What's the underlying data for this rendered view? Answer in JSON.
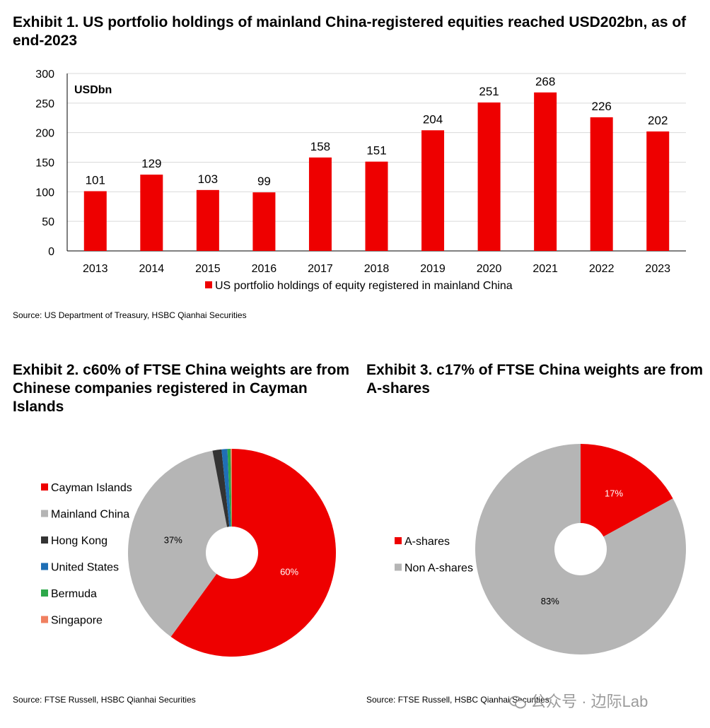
{
  "exhibit1": {
    "title": "Exhibit 1. US portfolio holdings of mainland China-registered equities reached USD202bn, as of end-2023",
    "source": "Source: US Department of Treasury, HSBC Qianhai Securities"
  },
  "exhibit2": {
    "title": "Exhibit 2. c60% of FTSE China weights are from Chinese companies registered in Cayman Islands",
    "source": "Source: FTSE Russell, HSBC Qianhai Securities"
  },
  "exhibit3": {
    "title": "Exhibit 3. c17% of FTSE China weights are from A-shares",
    "source": "Source: FTSE Russell, HSBC Qianhai Securities"
  },
  "watermark": {
    "text": "公众号 · 边际Lab"
  },
  "chart_data": [
    {
      "type": "bar",
      "title": "Exhibit 1. US portfolio holdings of mainland China-registered equities reached USD202bn, as of end-2023",
      "unit_label": "USDbn",
      "categories": [
        "2013",
        "2014",
        "2015",
        "2016",
        "2017",
        "2018",
        "2019",
        "2020",
        "2021",
        "2022",
        "2023"
      ],
      "series": [
        {
          "name": "US portfolio holdings of equity registered in mainland China",
          "values": [
            101,
            129,
            103,
            99,
            158,
            151,
            204,
            251,
            268,
            226,
            202
          ],
          "color": "#ee0000"
        }
      ],
      "ylim": [
        0,
        300
      ],
      "yticks": [
        0,
        50,
        100,
        150,
        200,
        250,
        300
      ],
      "grid": true,
      "legend": "bottom"
    },
    {
      "type": "pie",
      "title": "Exhibit 2. c60% of FTSE China weights are from Chinese companies registered in Cayman Islands",
      "start_angle_deg": 0,
      "slices": [
        {
          "name": "Cayman Islands",
          "value": 60,
          "color": "#ee0000",
          "label": "60%",
          "label_color": "#ffffff"
        },
        {
          "name": "Mainland China",
          "value": 37,
          "color": "#b5b5b5",
          "label": "37%",
          "label_color": "#000000"
        },
        {
          "name": "Hong Kong",
          "value": 1.4,
          "color": "#333333",
          "label": ""
        },
        {
          "name": "United States",
          "value": 0.9,
          "color": "#1f6fb5",
          "label": ""
        },
        {
          "name": "Bermuda",
          "value": 0.5,
          "color": "#2ea84a",
          "label": ""
        },
        {
          "name": "Singapore",
          "value": 0.2,
          "color": "#f08060",
          "label": ""
        }
      ],
      "legend": "left"
    },
    {
      "type": "pie",
      "title": "Exhibit 3. c17% of FTSE China weights are from A-shares",
      "start_angle_deg": 0,
      "slices": [
        {
          "name": "A-shares",
          "value": 17,
          "color": "#ee0000",
          "label": "17%",
          "label_color": "#ffffff"
        },
        {
          "name": "Non A-shares",
          "value": 83,
          "color": "#b5b5b5",
          "label": "83%",
          "label_color": "#000000"
        }
      ],
      "legend": "left"
    }
  ]
}
